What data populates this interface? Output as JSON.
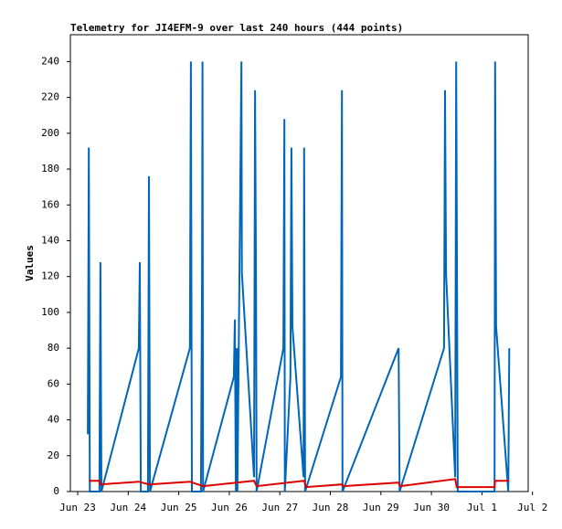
{
  "chart_data": {
    "type": "line",
    "title": "Telemetry for JI4EFM-9 over last 240 hours (444 points)",
    "y_label": "Values",
    "xlim": [
      -0.145,
      8.915
    ],
    "xticks": [
      {
        "value": 0,
        "label": "Jun 23"
      },
      {
        "value": 1,
        "label": "Jun 24"
      },
      {
        "value": 2,
        "label": "Jun 25"
      },
      {
        "value": 3,
        "label": "Jun 26"
      },
      {
        "value": 4,
        "label": "Jun 27"
      },
      {
        "value": 5,
        "label": "Jun 28"
      },
      {
        "value": 6,
        "label": "Jun 29"
      },
      {
        "value": 7,
        "label": "Jun 30"
      },
      {
        "value": 8,
        "label": "Jul 1"
      },
      {
        "value": 9,
        "label": "Jul 2"
      }
    ],
    "ylim": [
      0,
      255
    ],
    "yticks": [
      0,
      20,
      40,
      60,
      80,
      100,
      120,
      140,
      160,
      180,
      200,
      220,
      240
    ],
    "grid": false,
    "series": [
      {
        "color": "#0066bb",
        "x": [
          0.2,
          0.22,
          0.24,
          0.43,
          0.45,
          0.47,
          1.21,
          1.23,
          1.25,
          1.39,
          1.41,
          1.43,
          2.22,
          2.24,
          2.26,
          2.44,
          2.46,
          2.47,
          2.48,
          3.09,
          3.11,
          3.13,
          3.15,
          3.16,
          3.24,
          3.25,
          3.49,
          3.51,
          3.53,
          3.54,
          4.07,
          4.09,
          4.1,
          4.21,
          4.23,
          4.25,
          4.47,
          4.48,
          4.5,
          5.21,
          5.23,
          5.24,
          6.35,
          6.37,
          7.25,
          7.27,
          7.29,
          7.47,
          7.49,
          7.5,
          7.52,
          8.25,
          8.26,
          8.28,
          8.52,
          8.54
        ],
        "values": [
          32,
          192,
          0,
          0,
          128,
          0,
          80,
          128,
          0,
          0,
          176,
          0,
          80,
          240,
          0,
          0,
          120,
          240,
          0,
          64,
          96,
          0,
          80,
          0,
          240,
          122,
          8,
          224,
          112,
          0,
          80,
          208,
          0,
          64,
          192,
          92,
          8,
          192,
          0,
          64,
          224,
          0,
          80,
          0,
          80,
          224,
          122,
          8,
          240,
          160,
          0,
          0,
          240,
          92,
          0,
          80
        ]
      },
      {
        "color": "#dd0000",
        "x": [
          0.22,
          0.43,
          0.45,
          1.21,
          1.41,
          2.22,
          2.48,
          3.49,
          3.54,
          4.48,
          4.52,
          5.23,
          5.26,
          6.35,
          6.38,
          7.47,
          7.5,
          8.25,
          8.26,
          8.54
        ],
        "values": [
          6,
          6,
          4,
          5.5,
          4,
          5.5,
          3,
          6,
          3,
          6,
          2.5,
          4,
          3,
          5,
          3,
          7,
          2.5,
          2.5,
          6,
          6
        ]
      }
    ]
  }
}
